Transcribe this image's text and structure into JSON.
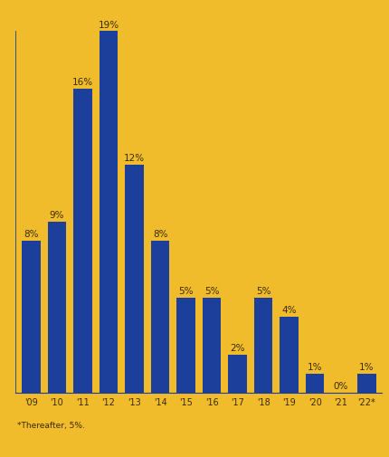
{
  "chart_data": {
    "type": "bar",
    "categories": [
      "'09",
      "'10",
      "'11",
      "'12",
      "'13",
      "'14",
      "'15",
      "'16",
      "'17",
      "'18",
      "'19",
      "'20",
      "'21",
      "'22*"
    ],
    "values": [
      8,
      9,
      16,
      19,
      12,
      8,
      5,
      5,
      2,
      5,
      4,
      1,
      0,
      1
    ],
    "value_labels": [
      "8%",
      "9%",
      "16%",
      "19%",
      "12%",
      "8%",
      "5%",
      "5%",
      "2%",
      "5%",
      "4%",
      "1%",
      "0%",
      "1%"
    ],
    "data_labels": true,
    "color": "#1b3f9a",
    "ylim": [
      0,
      19
    ],
    "tick_labels": "x",
    "grid": false,
    "annotations": [
      "*Thereafter, 5%."
    ]
  }
}
